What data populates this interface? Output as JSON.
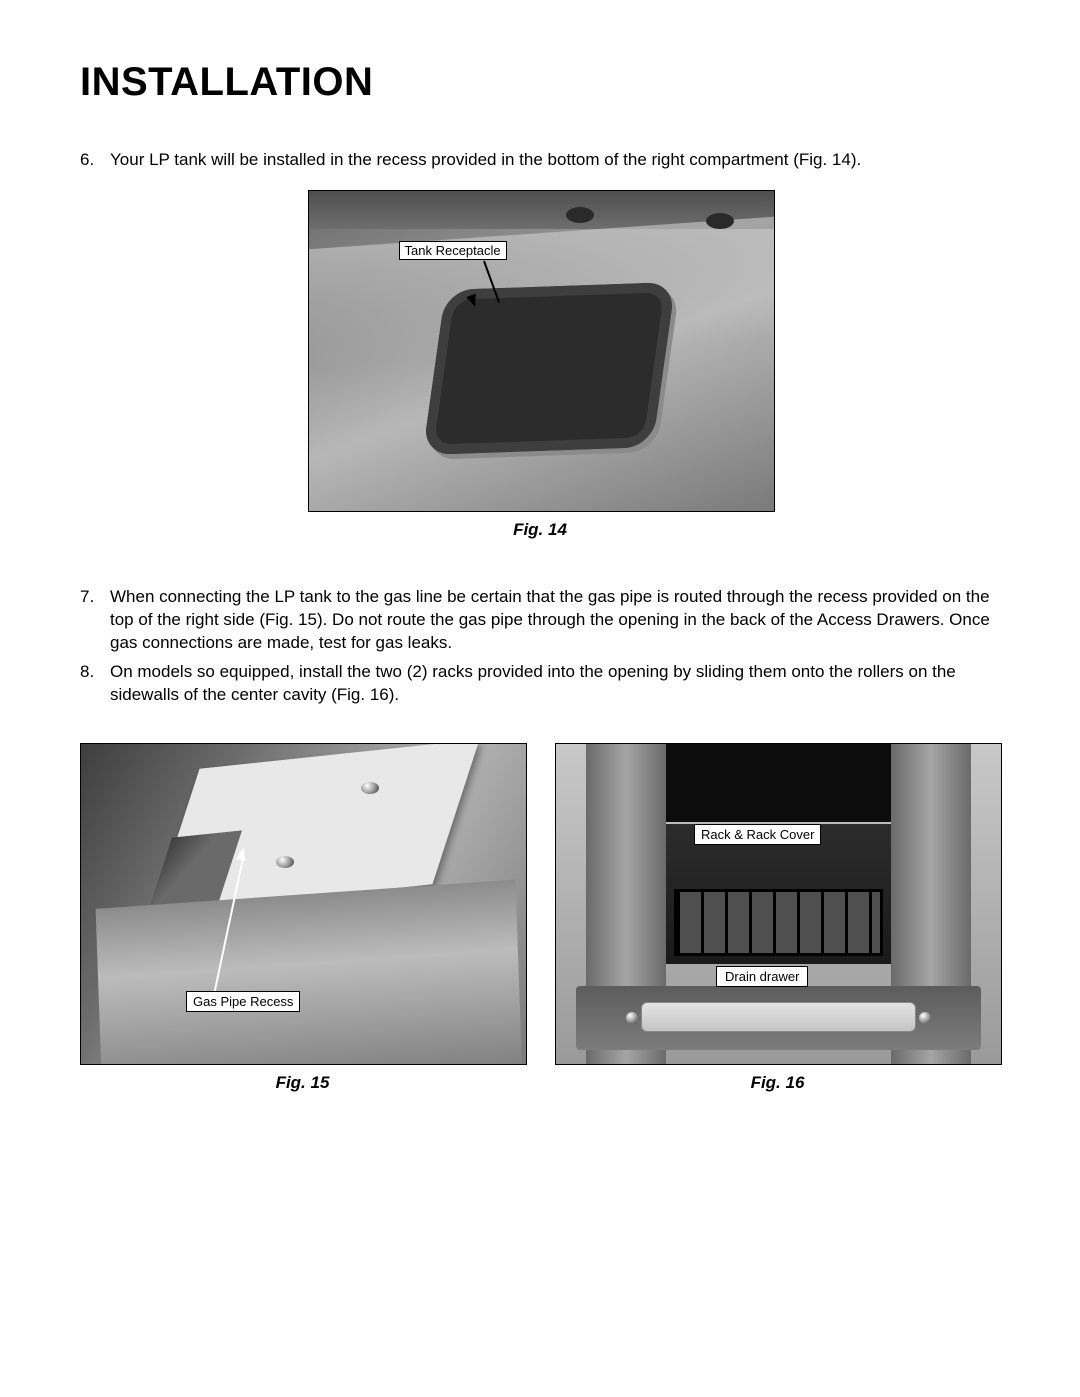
{
  "title": "INSTALLATION",
  "steps": {
    "s6": {
      "num": "6.",
      "text": "Your LP tank will be installed in the recess provided in the bottom of the right compartment (Fig. 14)."
    },
    "s7": {
      "num": "7.",
      "text": "When connecting the LP tank to the gas line be certain that the gas pipe is routed through the recess provided on the top of the right side (Fig. 15). Do not route the gas pipe through the opening in the back of the Access Drawers. Once gas connections are made, test for gas leaks."
    },
    "s8": {
      "num": "8.",
      "text": "On models so equipped, install the two (2) racks provided into the opening by sliding them onto the rollers on the sidewalls of the center cavity (Fig. 16)."
    }
  },
  "fig14": {
    "caption": "Fig. 14",
    "label": "Tank Receptacle"
  },
  "fig15": {
    "caption": "Fig. 15",
    "label": "Gas Pipe Recess"
  },
  "fig16": {
    "caption": "Fig. 16",
    "label_top": "Rack  & Rack Cover",
    "label_mid": "Drain drawer"
  }
}
